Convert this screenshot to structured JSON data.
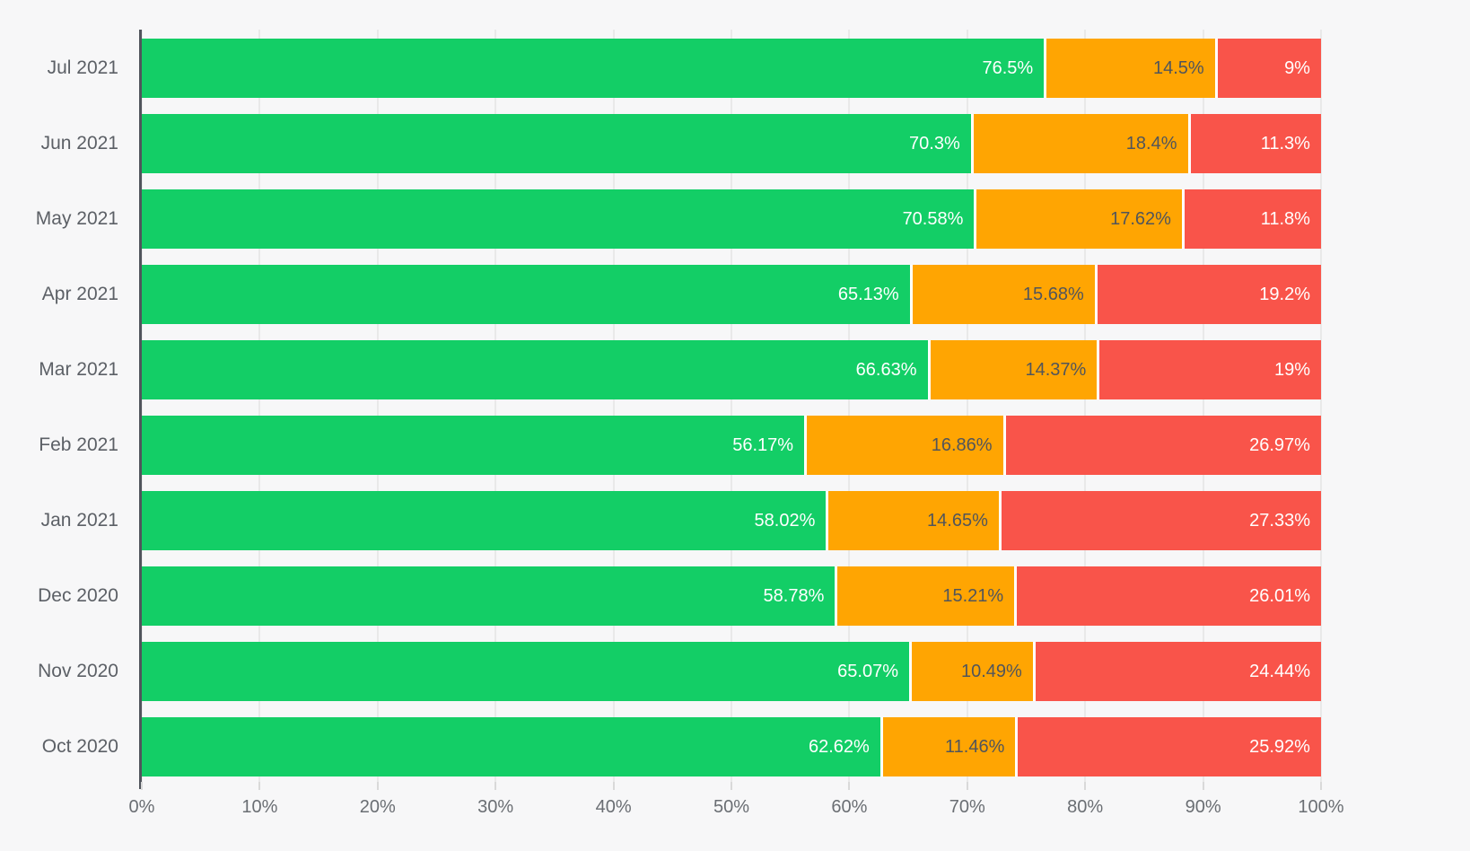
{
  "chart_data": {
    "type": "bar",
    "orientation": "horizontal",
    "stacked": true,
    "title": "",
    "categories": [
      "Jul 2021",
      "Jun 2021",
      "May 2021",
      "Apr 2021",
      "Mar 2021",
      "Feb 2021",
      "Jan 2021",
      "Dec 2020",
      "Nov 2020",
      "Oct 2020"
    ],
    "series": [
      {
        "name": "green",
        "color": "#13ce66",
        "label_color": "#ffffff",
        "values": [
          76.5,
          70.3,
          70.58,
          65.13,
          66.63,
          56.17,
          58.02,
          58.78,
          65.07,
          62.62
        ],
        "labels": [
          "76.5%",
          "70.3%",
          "70.58%",
          "65.13%",
          "66.63%",
          "56.17%",
          "58.02%",
          "58.78%",
          "65.07%",
          "62.62%"
        ]
      },
      {
        "name": "orange",
        "color": "#ffa502",
        "label_color": "#51555b",
        "values": [
          14.5,
          18.4,
          17.62,
          15.68,
          14.37,
          16.86,
          14.65,
          15.21,
          10.49,
          11.46
        ],
        "labels": [
          "14.5%",
          "18.4%",
          "17.62%",
          "15.68%",
          "14.37%",
          "16.86%",
          "14.65%",
          "15.21%",
          "10.49%",
          "11.46%"
        ]
      },
      {
        "name": "red",
        "color": "#f9544a",
        "label_color": "#ffffff",
        "values": [
          9,
          11.3,
          11.8,
          19.2,
          19,
          26.97,
          27.33,
          26.01,
          24.44,
          25.92
        ],
        "labels": [
          "9%",
          "11.3%",
          "11.8%",
          "19.2%",
          "19%",
          "26.97%",
          "27.33%",
          "26.01%",
          "24.44%",
          "25.92%"
        ]
      }
    ],
    "x_axis": {
      "min": 0,
      "max": 100,
      "tick_labels": [
        "0%",
        "10%",
        "20%",
        "30%",
        "40%",
        "50%",
        "60%",
        "70%",
        "80%",
        "90%",
        "100%"
      ]
    },
    "y_axis": {
      "labels_right_aligned": true
    },
    "grid": true,
    "legend": false
  },
  "style": {
    "background": "#f7f7f8",
    "grid_color": "#e9e9e9",
    "axis_line_color": "#50545c",
    "tick_color": "#d9d9d9",
    "x_label_color": "#6a6e73",
    "y_label_color": "#5c6066",
    "separator_color": "#ffffff"
  }
}
